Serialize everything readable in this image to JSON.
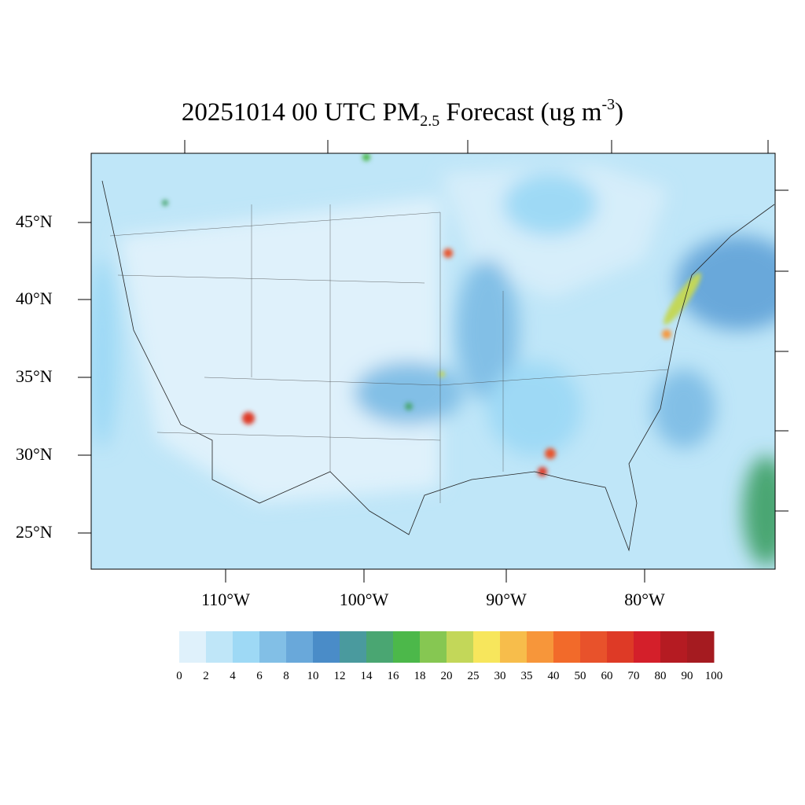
{
  "title": {
    "date": "20251014",
    "hour": "00",
    "tz": "UTC",
    "species": "PM",
    "subscript": "2.5",
    "word": "Forecast",
    "units_open": "(ug m",
    "units_exp": "-3",
    "units_close": ")"
  },
  "lat_labels": [
    "45°N",
    "40°N",
    "35°N",
    "30°N",
    "25°N"
  ],
  "lon_labels": [
    "110°W",
    "100°W",
    "90°W",
    "80°W"
  ],
  "colorbar": {
    "labels": [
      "0",
      "2",
      "4",
      "6",
      "8",
      "10",
      "12",
      "14",
      "16",
      "18",
      "20",
      "25",
      "30",
      "35",
      "40",
      "50",
      "60",
      "70",
      "80",
      "90",
      "100"
    ],
    "colors": [
      "#dff1fb",
      "#bfe6f8",
      "#9ed9f5",
      "#82bfe6",
      "#69a8da",
      "#4a8cc8",
      "#4a9a9e",
      "#4aa672",
      "#4cb84a",
      "#86c752",
      "#c3d759",
      "#f7e65c",
      "#f7bd4b",
      "#f7963a",
      "#f26a2a",
      "#e8522b",
      "#de3a26",
      "#d41f2a",
      "#b51b22",
      "#a51b20",
      "#8e161c"
    ]
  }
}
